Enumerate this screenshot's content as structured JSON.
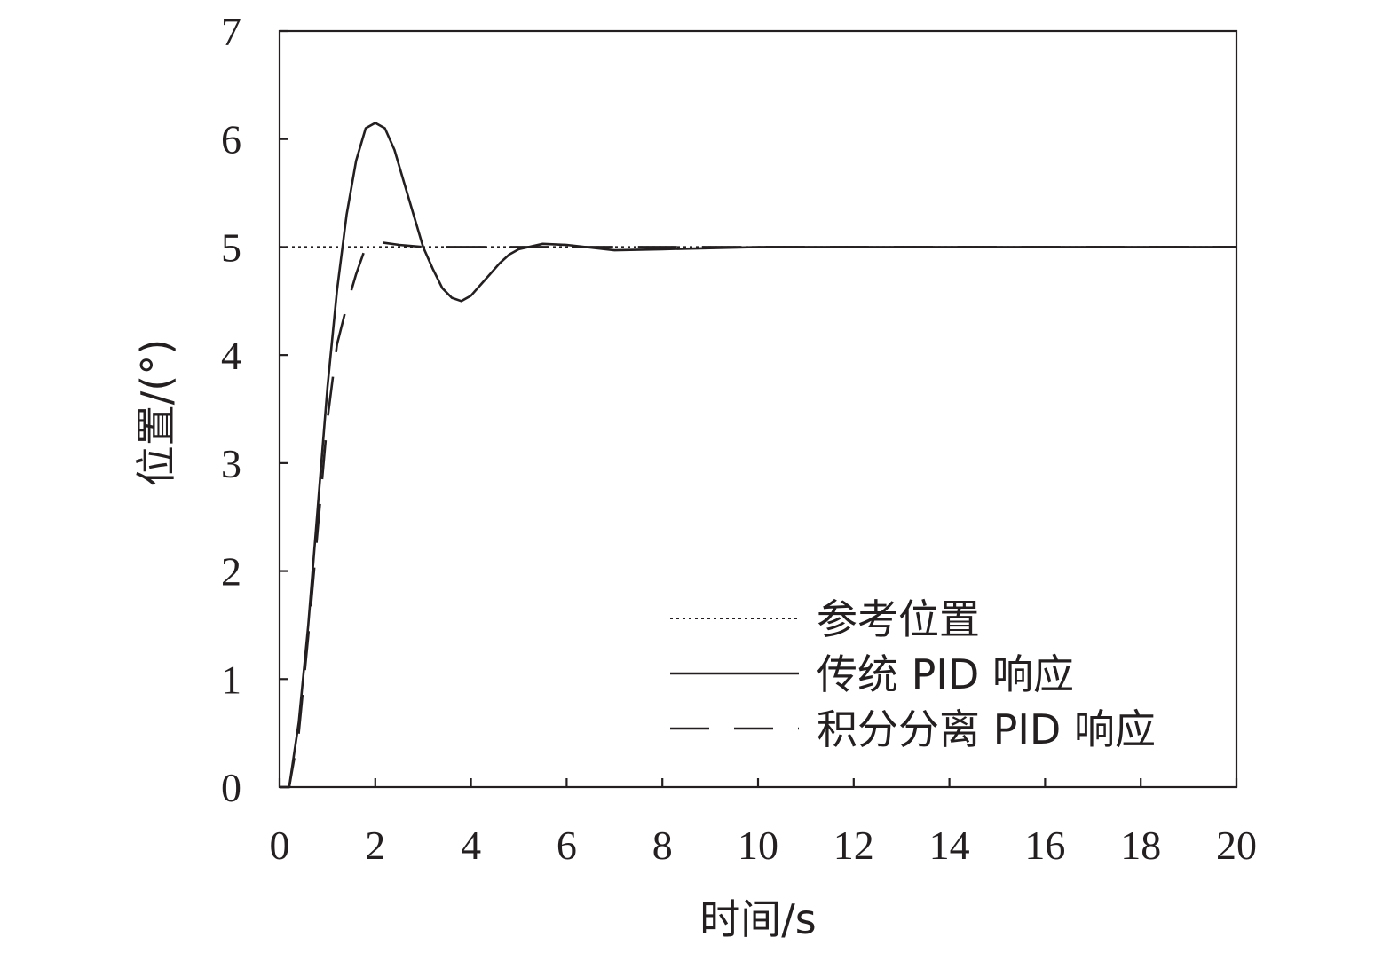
{
  "chart_data": {
    "type": "line",
    "xlabel": "时间/s",
    "ylabel": "位置/(°)",
    "xlim": [
      0,
      20
    ],
    "ylim": [
      0,
      7
    ],
    "xticks": [
      0,
      2,
      4,
      6,
      8,
      10,
      12,
      14,
      16,
      18,
      20
    ],
    "yticks": [
      0,
      1,
      2,
      3,
      4,
      5,
      6,
      7
    ],
    "grid": false,
    "legend_position": "bottom-right",
    "line_color": "#231f20",
    "series": [
      {
        "name": "参考位置",
        "style": "dotted",
        "x": [
          0,
          20
        ],
        "y": [
          5,
          5
        ]
      },
      {
        "name": "传统 PID 响应",
        "style": "solid",
        "x": [
          0,
          0.2,
          0.4,
          0.6,
          0.8,
          1.0,
          1.2,
          1.4,
          1.6,
          1.8,
          2.0,
          2.2,
          2.4,
          2.6,
          2.8,
          3.0,
          3.2,
          3.4,
          3.6,
          3.8,
          4.0,
          4.2,
          4.4,
          4.6,
          4.8,
          5.0,
          5.5,
          6.0,
          7.0,
          8.0,
          10.0,
          12.0,
          14.0,
          16.0,
          18.0,
          20.0
        ],
        "y": [
          0,
          0,
          0.6,
          1.5,
          2.6,
          3.7,
          4.6,
          5.3,
          5.8,
          6.1,
          6.15,
          6.1,
          5.9,
          5.6,
          5.3,
          5.0,
          4.8,
          4.62,
          4.53,
          4.5,
          4.55,
          4.65,
          4.75,
          4.85,
          4.93,
          4.98,
          5.03,
          5.02,
          4.97,
          4.98,
          5.0,
          5.0,
          5.0,
          5.0,
          5.0,
          5.0
        ]
      },
      {
        "name": "积分分离 PID 响应",
        "style": "dashed",
        "x": [
          0,
          0.2,
          0.4,
          0.6,
          0.8,
          1.0,
          1.2,
          1.4,
          1.6,
          1.8,
          2.0,
          2.5,
          3.0,
          4.0,
          5.0,
          6.0,
          8.0,
          10.0,
          12.0,
          14.0,
          16.0,
          18.0,
          20.0
        ],
        "y": [
          0,
          0,
          0.5,
          1.4,
          2.4,
          3.4,
          4.1,
          4.45,
          4.75,
          5.0,
          5.05,
          5.02,
          5.0,
          5.0,
          5.0,
          5.0,
          5.0,
          5.0,
          5.0,
          5.0,
          5.0,
          5.0,
          5.0
        ]
      }
    ]
  }
}
